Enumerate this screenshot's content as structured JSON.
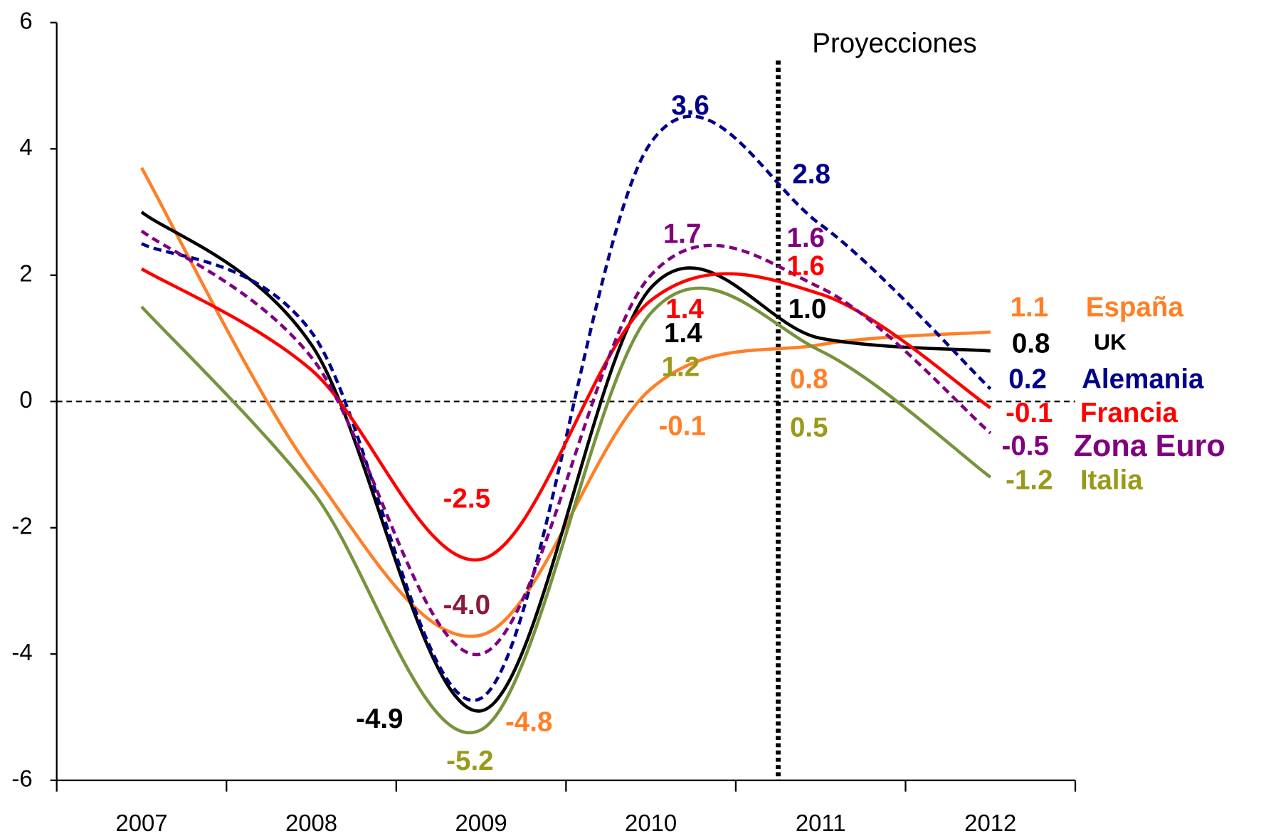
{
  "chart_data": {
    "type": "line",
    "categories": [
      "2007",
      "2008",
      "2009",
      "2010",
      "2011",
      "2012"
    ],
    "ylim": [
      -6,
      6
    ],
    "yticks": [
      -6,
      -4,
      -2,
      0,
      2,
      4,
      6
    ],
    "projection_label": "Proyecciones",
    "series": [
      {
        "name": "España",
        "color": "#ff7f27",
        "label_color": "#ff7f27",
        "dashed": false,
        "values": [
          3.7,
          -1.1,
          -3.7,
          0.2,
          0.9,
          1.1
        ]
      },
      {
        "name": "UK",
        "color": "#000000",
        "label_color": "#000000",
        "dashed": false,
        "values": [
          3.0,
          0.9,
          -4.9,
          1.8,
          1.0,
          0.8
        ]
      },
      {
        "name": "Alemania",
        "color": "#00008b",
        "label_color": "#00008b",
        "dashed": true,
        "values": [
          2.5,
          1.1,
          -4.7,
          4.1,
          2.8,
          0.2
        ]
      },
      {
        "name": "Francia",
        "color": "#ff0000",
        "label_color": "#ff0000",
        "dashed": false,
        "values": [
          2.1,
          0.5,
          -2.5,
          1.6,
          1.7,
          -0.1
        ]
      },
      {
        "name": "Zona Euro",
        "color": "#800080",
        "label_color": "#800080",
        "dashed": true,
        "values": [
          2.7,
          0.7,
          -4.0,
          2.0,
          1.8,
          -0.5
        ]
      },
      {
        "name": "Italia",
        "color": "#77933c",
        "label_color": "#9a9a1a",
        "dashed": false,
        "values": [
          1.5,
          -1.4,
          -5.2,
          1.4,
          0.8,
          -1.2
        ]
      }
    ],
    "annotations": [
      {
        "text": "3.6",
        "color": "#00008b"
      },
      {
        "text": "2.8",
        "color": "#00008b"
      },
      {
        "text": "1.7",
        "color": "#800080"
      },
      {
        "text": "1.6",
        "color": "#800080"
      },
      {
        "text": "1.6",
        "color": "#ff0000"
      },
      {
        "text": "1.4",
        "color": "#ff0000"
      },
      {
        "text": "1.0",
        "color": "#000000"
      },
      {
        "text": "1.4",
        "color": "#000000"
      },
      {
        "text": "1.2",
        "color": "#9a9a1a"
      },
      {
        "text": "0.8",
        "color": "#ff7f27"
      },
      {
        "text": "-0.1",
        "color": "#ff7f27"
      },
      {
        "text": "0.5",
        "color": "#9a9a1a"
      },
      {
        "text": "-2.5",
        "color": "#ff0000"
      },
      {
        "text": "-4.0",
        "color": "#8b1a3a"
      },
      {
        "text": "-4.9",
        "color": "#000000"
      },
      {
        "text": "-4.8",
        "color": "#ff7f27"
      },
      {
        "text": "-5.2",
        "color": "#9a9a1a"
      },
      {
        "text": "1.1",
        "color": "#ff7f27"
      },
      {
        "text": "0.8",
        "color": "#000000"
      },
      {
        "text": "0.2",
        "color": "#00008b"
      },
      {
        "text": "-0.1",
        "color": "#ff0000"
      },
      {
        "text": "-0.5",
        "color": "#800080"
      },
      {
        "text": "-1.2",
        "color": "#9a9a1a"
      }
    ]
  }
}
